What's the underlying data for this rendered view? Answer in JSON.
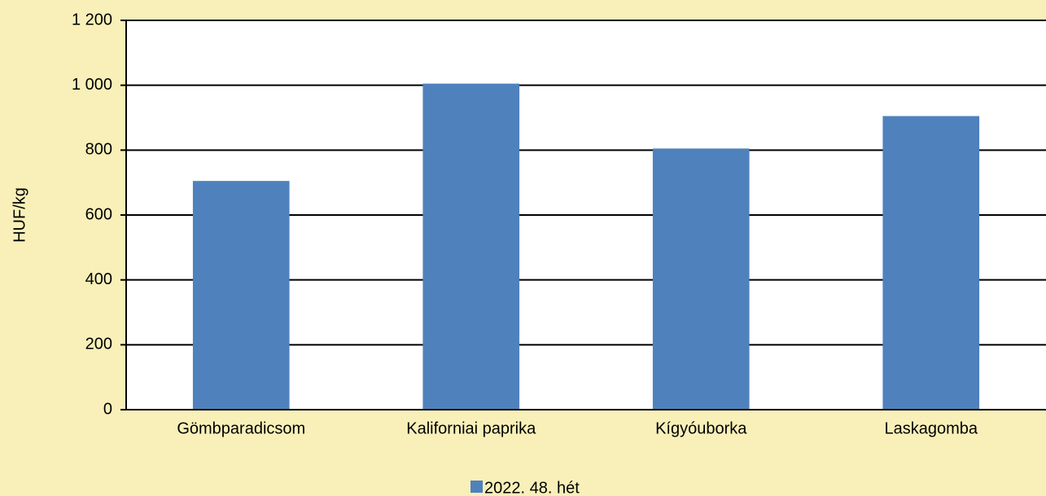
{
  "chart_data": {
    "type": "bar",
    "y_label": "HUF/kg",
    "categories": [
      "Gömbparadicsom",
      "Kaliforniai paprika",
      "Kígyóuborka",
      "Laskagomba"
    ],
    "series": [
      {
        "name": "2022. 48. hét",
        "color": "#4f81bd",
        "values": [
          705,
          1005,
          805,
          905
        ]
      }
    ],
    "ylim": [
      0,
      1200
    ],
    "yticks": [
      0,
      200,
      400,
      600,
      800,
      {
        "value": 1000,
        "label": "1 000"
      },
      {
        "value": 1200,
        "label": "1 200"
      }
    ],
    "grid": true,
    "legend": "bottom"
  }
}
